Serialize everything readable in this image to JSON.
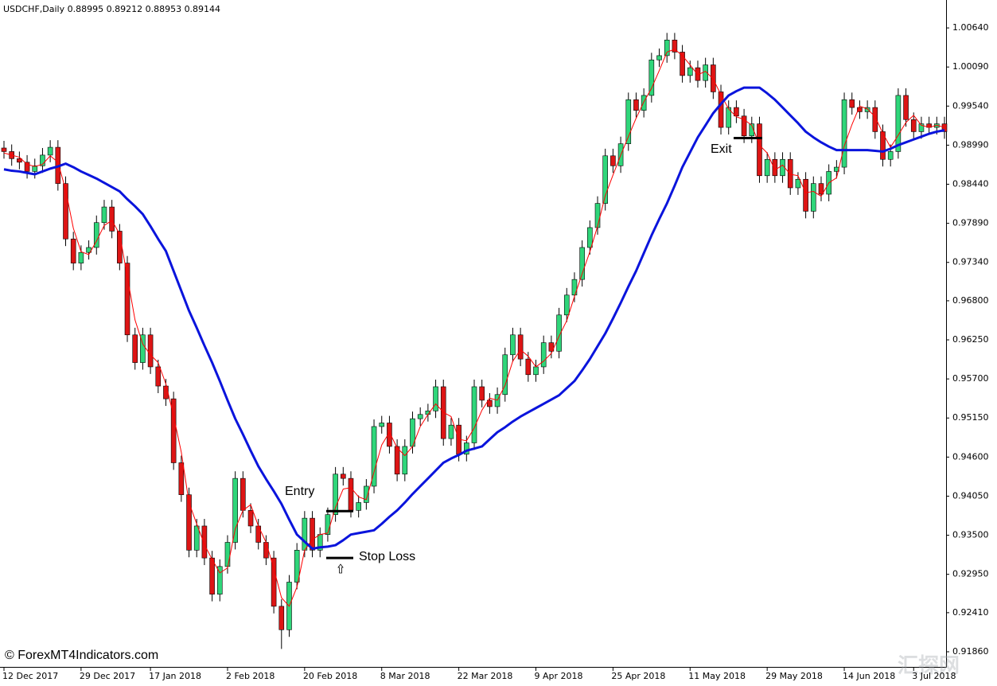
{
  "chart_data": {
    "type": "candlestick",
    "title": "USDCHF,Daily  0.88995 0.89212 0.88953 0.89144",
    "watermark": "© ForexMT4Indicators.com",
    "corner_mark": "汇探网",
    "up_color": "#2fd67a",
    "down_color": "#dd1515",
    "categories": [
      "12 Dec 2017",
      null,
      null,
      null,
      null,
      null,
      null,
      null,
      null,
      null,
      "29 Dec 2017",
      null,
      null,
      null,
      null,
      null,
      null,
      null,
      null,
      "17 Jan 2018",
      null,
      null,
      null,
      null,
      null,
      null,
      null,
      null,
      null,
      "2 Feb 2018",
      null,
      null,
      null,
      null,
      null,
      null,
      null,
      null,
      null,
      "20 Feb 2018",
      null,
      null,
      null,
      null,
      null,
      null,
      null,
      null,
      null,
      "8 Mar 2018",
      null,
      null,
      null,
      null,
      null,
      null,
      null,
      null,
      null,
      "22 Mar 2018",
      null,
      null,
      null,
      null,
      null,
      null,
      null,
      null,
      null,
      "9 Apr 2018",
      null,
      null,
      null,
      null,
      null,
      null,
      null,
      null,
      null,
      "25 Apr 2018",
      null,
      null,
      null,
      null,
      null,
      null,
      null,
      null,
      null,
      "11 May 2018",
      null,
      null,
      null,
      null,
      null,
      null,
      null,
      null,
      null,
      "29 May 2018",
      null,
      null,
      null,
      null,
      null,
      null,
      null,
      null,
      null,
      "14 Jun 2018",
      null,
      null,
      null,
      null,
      null,
      null,
      null,
      null,
      "3 Jul 2018",
      null,
      null,
      null,
      null
    ],
    "open": [
      0.9895,
      0.989,
      0.988,
      0.9875,
      0.9862,
      0.987,
      0.9885,
      0.9896,
      0.9845,
      0.9767,
      0.9733,
      0.9748,
      0.9755,
      0.979,
      0.9812,
      0.9778,
      0.9733,
      0.9632,
      0.9593,
      0.9632,
      0.9587,
      0.956,
      0.9542,
      0.9452,
      0.9407,
      0.9329,
      0.9363,
      0.9318,
      0.9267,
      0.9306,
      0.934,
      0.943,
      0.9385,
      0.9363,
      0.934,
      0.9318,
      0.925,
      0.9217,
      0.9284,
      0.9329,
      0.9374,
      0.9329,
      0.9351,
      0.9379,
      0.9436,
      0.943,
      0.9385,
      0.9396,
      0.9419,
      0.9503,
      0.9508,
      0.9475,
      0.9436,
      0.9475,
      0.9514,
      0.952,
      0.9525,
      0.9559,
      0.9486,
      0.9505,
      0.9464,
      0.948,
      0.9559,
      0.954,
      0.9531,
      0.9548,
      0.9604,
      0.9632,
      0.9598,
      0.9576,
      0.9587,
      0.9621,
      0.9609,
      0.966,
      0.9688,
      0.971,
      0.9755,
      0.9783,
      0.9817,
      0.9884,
      0.987,
      0.9901,
      0.9963,
      0.9948,
      0.9969,
      1.0019,
      1.0025,
      1.0047,
      1.003,
      0.9997,
      1.0008,
      0.999,
      1.0012,
      0.9974,
      0.9924,
      0.9952,
      0.994,
      0.9912,
      0.9929,
      0.9856,
      0.9879,
      0.9856,
      0.9879,
      0.9839,
      0.9851,
      0.9806,
      0.9845,
      0.983,
      0.9862,
      0.9868,
      0.9963,
      0.9952,
      0.9946,
      0.9952,
      0.9918,
      0.9879,
      0.989,
      0.9969,
      0.9935,
      0.9918,
      0.9929,
      0.9924,
      0.9929
    ],
    "high": [
      0.9905,
      0.99,
      0.989,
      0.9885,
      0.988,
      0.9895,
      0.9906,
      0.9906,
      0.9855,
      0.9777,
      0.9758,
      0.9765,
      0.98,
      0.9822,
      0.9822,
      0.9788,
      0.9743,
      0.9642,
      0.9642,
      0.9642,
      0.9597,
      0.957,
      0.9552,
      0.9462,
      0.9417,
      0.9373,
      0.9373,
      0.9328,
      0.9316,
      0.935,
      0.944,
      0.944,
      0.9395,
      0.9373,
      0.935,
      0.9328,
      0.926,
      0.9294,
      0.9339,
      0.9384,
      0.9384,
      0.9361,
      0.9389,
      0.9446,
      0.9446,
      0.944,
      0.9406,
      0.9429,
      0.9513,
      0.9518,
      0.9518,
      0.9485,
      0.9485,
      0.9524,
      0.953,
      0.9535,
      0.9569,
      0.9569,
      0.9515,
      0.9515,
      0.949,
      0.9569,
      0.9569,
      0.955,
      0.9558,
      0.9614,
      0.9642,
      0.9642,
      0.9608,
      0.9597,
      0.9631,
      0.9631,
      0.967,
      0.9698,
      0.972,
      0.9765,
      0.9793,
      0.9827,
      0.9894,
      0.9894,
      0.9911,
      0.9973,
      0.9973,
      0.9979,
      1.0029,
      1.0035,
      1.0057,
      1.0057,
      1.004,
      1.0018,
      1.0018,
      1.0022,
      1.0022,
      0.9984,
      0.9962,
      0.9962,
      0.995,
      0.9939,
      0.9939,
      0.9889,
      0.9889,
      0.9889,
      0.9889,
      0.9861,
      0.9861,
      0.9855,
      0.9855,
      0.9872,
      0.9878,
      0.9973,
      0.9973,
      0.9962,
      0.9962,
      0.9962,
      0.9928,
      0.99,
      0.9979,
      0.9979,
      0.9945,
      0.9939,
      0.9939,
      0.9939,
      0.9939
    ],
    "low": [
      0.988,
      0.987,
      0.9865,
      0.9852,
      0.9852,
      0.986,
      0.9875,
      0.9835,
      0.9757,
      0.9723,
      0.9723,
      0.9738,
      0.9745,
      0.978,
      0.9768,
      0.9723,
      0.9622,
      0.9583,
      0.9583,
      0.9577,
      0.955,
      0.9532,
      0.9442,
      0.9397,
      0.9319,
      0.9319,
      0.9308,
      0.9257,
      0.9257,
      0.9296,
      0.933,
      0.9375,
      0.9353,
      0.933,
      0.9308,
      0.924,
      0.919,
      0.9207,
      0.9274,
      0.9319,
      0.9319,
      0.9319,
      0.9341,
      0.9369,
      0.942,
      0.9375,
      0.9375,
      0.9386,
      0.9409,
      0.9493,
      0.9465,
      0.9426,
      0.9426,
      0.9465,
      0.9504,
      0.951,
      0.9515,
      0.9476,
      0.9476,
      0.9454,
      0.9454,
      0.947,
      0.953,
      0.9521,
      0.9521,
      0.9538,
      0.9594,
      0.9588,
      0.9566,
      0.9566,
      0.9577,
      0.9599,
      0.9599,
      0.965,
      0.9678,
      0.97,
      0.9745,
      0.9773,
      0.9807,
      0.986,
      0.986,
      0.9891,
      0.9938,
      0.9938,
      0.9959,
      1.0009,
      1.0015,
      1.002,
      0.9987,
      0.9987,
      0.998,
      0.998,
      0.9964,
      0.9914,
      0.9914,
      0.993,
      0.9902,
      0.9902,
      0.9846,
      0.9846,
      0.9846,
      0.9846,
      0.9829,
      0.9829,
      0.9796,
      0.9796,
      0.982,
      0.982,
      0.9852,
      0.9858,
      0.9942,
      0.9936,
      0.9936,
      0.9908,
      0.9869,
      0.9869,
      0.988,
      0.9925,
      0.9908,
      0.9908,
      0.9914,
      0.9914,
      0.9908
    ],
    "close": [
      0.989,
      0.988,
      0.9875,
      0.9862,
      0.987,
      0.9885,
      0.9896,
      0.9845,
      0.9767,
      0.9733,
      0.9748,
      0.9755,
      0.979,
      0.9812,
      0.9778,
      0.9733,
      0.9632,
      0.9593,
      0.9632,
      0.9587,
      0.956,
      0.9542,
      0.9452,
      0.9407,
      0.9329,
      0.9363,
      0.9318,
      0.9267,
      0.9306,
      0.934,
      0.943,
      0.9385,
      0.9363,
      0.934,
      0.9318,
      0.925,
      0.9217,
      0.9284,
      0.9329,
      0.9374,
      0.9329,
      0.9351,
      0.9379,
      0.9436,
      0.943,
      0.9385,
      0.9396,
      0.9419,
      0.9503,
      0.9508,
      0.9475,
      0.9436,
      0.9475,
      0.9514,
      0.952,
      0.9525,
      0.9559,
      0.9486,
      0.9505,
      0.9464,
      0.948,
      0.9559,
      0.954,
      0.9531,
      0.9548,
      0.9604,
      0.9632,
      0.9598,
      0.9576,
      0.9587,
      0.9621,
      0.9609,
      0.966,
      0.9688,
      0.971,
      0.9755,
      0.9783,
      0.9817,
      0.9884,
      0.987,
      0.9901,
      0.9963,
      0.9948,
      0.9969,
      1.0019,
      1.0025,
      1.0047,
      1.003,
      0.9997,
      1.0008,
      0.999,
      1.0012,
      0.9974,
      0.9924,
      0.9952,
      0.994,
      0.9912,
      0.9929,
      0.9856,
      0.9879,
      0.9856,
      0.9879,
      0.9839,
      0.9851,
      0.9806,
      0.9845,
      0.983,
      0.9862,
      0.9868,
      0.9963,
      0.9952,
      0.9946,
      0.9952,
      0.9918,
      0.9879,
      0.989,
      0.9969,
      0.9935,
      0.9918,
      0.9929,
      0.9924,
      0.9929,
      0.9918
    ],
    "lines": [
      {
        "color": "#ff0000",
        "width": 1,
        "values": [
          0.9888,
          0.9885,
          0.9882,
          0.9872,
          0.9869,
          0.9872,
          0.9884,
          0.9875,
          0.9836,
          0.9782,
          0.9749,
          0.9745,
          0.9764,
          0.9786,
          0.9793,
          0.9774,
          0.9714,
          0.9653,
          0.9619,
          0.9604,
          0.9593,
          0.9563,
          0.9518,
          0.9467,
          0.9396,
          0.9366,
          0.9337,
          0.9316,
          0.9297,
          0.9304,
          0.9359,
          0.9385,
          0.9393,
          0.9363,
          0.934,
          0.9303,
          0.9262,
          0.925,
          0.9277,
          0.9329,
          0.9344,
          0.9351,
          0.9353,
          0.9389,
          0.9415,
          0.9417,
          0.9404,
          0.94,
          0.9439,
          0.9477,
          0.9495,
          0.9473,
          0.9462,
          0.9475,
          0.9503,
          0.952,
          0.9535,
          0.9523,
          0.9517,
          0.9485,
          0.9483,
          0.9501,
          0.9526,
          0.9543,
          0.954,
          0.9561,
          0.9595,
          0.9611,
          0.9602,
          0.9587,
          0.9595,
          0.9606,
          0.963,
          0.9652,
          0.9686,
          0.9718,
          0.9749,
          0.9785,
          0.9828,
          0.9857,
          0.9885,
          0.9911,
          0.9937,
          0.996,
          0.9979,
          1.0004,
          1.003,
          1.0034,
          1.0025,
          1.0012,
          0.9998,
          1.0003,
          0.9992,
          0.997,
          0.995,
          0.9939,
          0.9935,
          0.9927,
          0.9899,
          0.9888,
          0.9864,
          0.9871,
          0.9858,
          0.9856,
          0.9832,
          0.9834,
          0.9827,
          0.9846,
          0.9853,
          0.9898,
          0.9928,
          0.9954,
          0.995,
          0.9939,
          0.9916,
          0.9896,
          0.9913,
          0.9931,
          0.9941,
          0.9927,
          0.9924,
          0.9927,
          0.9924
        ]
      },
      {
        "color": "#0a14dc",
        "width": 3,
        "values": [
          0.9865,
          0.9863,
          0.9862,
          0.986,
          0.9858,
          0.9862,
          0.9866,
          0.9869,
          0.9873,
          0.9868,
          0.9862,
          0.9857,
          0.9852,
          0.9846,
          0.984,
          0.9834,
          0.9823,
          0.9813,
          0.9802,
          0.9785,
          0.9767,
          0.975,
          0.9722,
          0.9694,
          0.9666,
          0.9642,
          0.9617,
          0.9593,
          0.9567,
          0.954,
          0.9514,
          0.9492,
          0.9469,
          0.9447,
          0.9429,
          0.9412,
          0.9394,
          0.9372,
          0.9351,
          0.9341,
          0.9331,
          0.9333,
          0.9334,
          0.9336,
          0.9343,
          0.9351,
          0.9353,
          0.9355,
          0.9357,
          0.9366,
          0.9376,
          0.9385,
          0.9396,
          0.9408,
          0.9419,
          0.943,
          0.9441,
          0.9452,
          0.9458,
          0.9463,
          0.9469,
          0.9472,
          0.9475,
          0.9485,
          0.9495,
          0.9502,
          0.951,
          0.9517,
          0.9523,
          0.9529,
          0.9535,
          0.9541,
          0.9547,
          0.9557,
          0.9567,
          0.9582,
          0.9598,
          0.9616,
          0.9634,
          0.9655,
          0.9677,
          0.97,
          0.9722,
          0.9747,
          0.9772,
          0.9795,
          0.9817,
          0.9842,
          0.9868,
          0.9889,
          0.991,
          0.9927,
          0.9944,
          0.9957,
          0.9969,
          0.9975,
          0.998,
          0.998,
          0.998,
          0.9972,
          0.9963,
          0.9952,
          0.9941,
          0.993,
          0.9918,
          0.991,
          0.9903,
          0.9897,
          0.9892,
          0.9892,
          0.9892,
          0.9892,
          0.9892,
          0.9891,
          0.989,
          0.9894,
          0.9899,
          0.9903,
          0.9907,
          0.9911,
          0.9915,
          0.9918,
          0.992
        ]
      }
    ],
    "annotations": [
      {
        "text": "Entry",
        "level": 0.9384
      },
      {
        "text": "Stop Loss",
        "level": 0.9318
      },
      {
        "text": "Exit",
        "level": 0.9909
      }
    ],
    "ylim": [
      0.91647,
      1.01033
    ],
    "yticks": [
      {
        "value": 0.9186,
        "label": "0.91860"
      },
      {
        "value": 0.9241,
        "label": "0.92410"
      },
      {
        "value": 0.9295,
        "label": "0.92950"
      },
      {
        "value": 0.935,
        "label": "0.93500"
      },
      {
        "value": 0.9405,
        "label": "0.94050"
      },
      {
        "value": 0.946,
        "label": "0.94600"
      },
      {
        "value": 0.9515,
        "label": "0.95150"
      },
      {
        "value": 0.957,
        "label": "0.95700"
      },
      {
        "value": 0.9625,
        "label": "0.96250"
      },
      {
        "value": 0.968,
        "label": "0.96800"
      },
      {
        "value": 0.9734,
        "label": "0.97340"
      },
      {
        "value": 0.9789,
        "label": "0.97890"
      },
      {
        "value": 0.9844,
        "label": "0.98440"
      },
      {
        "value": 0.9899,
        "label": "0.98990"
      },
      {
        "value": 0.9954,
        "label": "0.99540"
      },
      {
        "value": 1.0009,
        "label": "1.00090"
      },
      {
        "value": 1.0064,
        "label": "1.00640"
      }
    ],
    "grid": false
  }
}
